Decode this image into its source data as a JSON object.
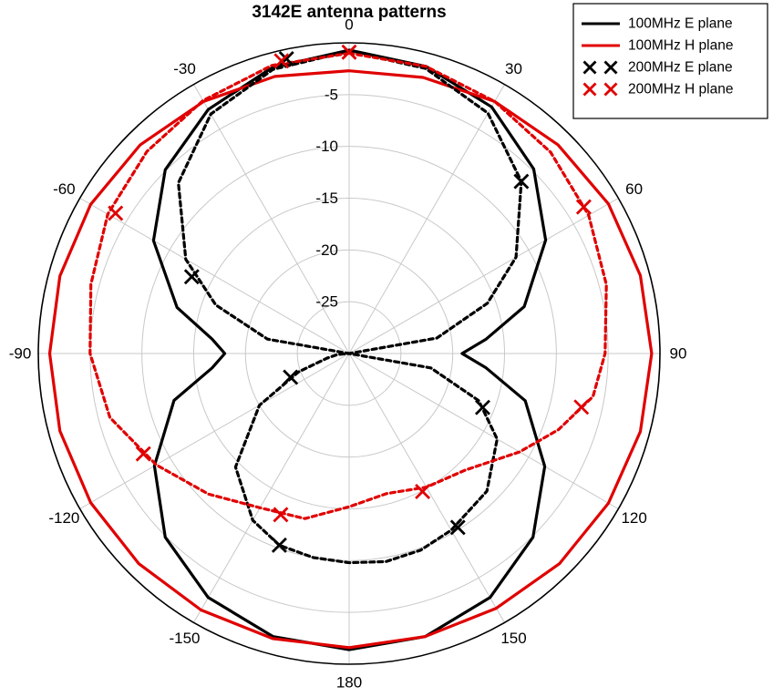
{
  "chart_data": {
    "type": "polar",
    "title": "3142E antenna patterns",
    "angle_ticks": [
      {
        "angle": 0,
        "label": "0"
      },
      {
        "angle": 30,
        "label": "30"
      },
      {
        "angle": 60,
        "label": "60"
      },
      {
        "angle": 90,
        "label": "90"
      },
      {
        "angle": 120,
        "label": "120"
      },
      {
        "angle": 150,
        "label": "150"
      },
      {
        "angle": 180,
        "label": "180"
      },
      {
        "angle": -150,
        "label": "-150"
      },
      {
        "angle": -120,
        "label": "-120"
      },
      {
        "angle": -90,
        "label": "-90"
      },
      {
        "angle": -60,
        "label": "-60"
      },
      {
        "angle": -30,
        "label": "-30"
      }
    ],
    "radial_ticks": [
      {
        "value": -5,
        "label": "-5"
      },
      {
        "value": -10,
        "label": "-10"
      },
      {
        "value": -15,
        "label": "-15"
      },
      {
        "value": -20,
        "label": "-20"
      },
      {
        "value": -25,
        "label": "-25"
      }
    ],
    "radial_range": [
      -30,
      0
    ],
    "grid": true,
    "legend_position": "top-right",
    "series": [
      {
        "name": "100MHz E plane",
        "color": "#000000",
        "style": "solid",
        "marker": "none",
        "points": [
          [
            0,
            -0.7
          ],
          [
            15,
            -1.3
          ],
          [
            30,
            -2.5
          ],
          [
            45,
            -4.8
          ],
          [
            60,
            -8.1
          ],
          [
            75,
            -12.5
          ],
          [
            84,
            -16.7
          ],
          [
            90,
            -19.1
          ],
          [
            96,
            -16.7
          ],
          [
            105,
            -12.4
          ],
          [
            120,
            -8.2
          ],
          [
            135,
            -4.9
          ],
          [
            150,
            -2.8
          ],
          [
            165,
            -1.7
          ],
          [
            180,
            -1.4
          ],
          [
            195,
            -1.7
          ],
          [
            210,
            -2.8
          ],
          [
            225,
            -4.9
          ],
          [
            240,
            -8.3
          ],
          [
            255,
            -12.5
          ],
          [
            264,
            -16.7
          ],
          [
            270,
            -18.0
          ],
          [
            276,
            -16.7
          ],
          [
            285,
            -12.8
          ],
          [
            300,
            -8.2
          ],
          [
            315,
            -4.9
          ],
          [
            330,
            -2.8
          ],
          [
            345,
            -1.4
          ]
        ]
      },
      {
        "name": "100MHz H plane",
        "color": "#e00000",
        "style": "solid",
        "marker": "none",
        "points": [
          [
            0,
            -2.7
          ],
          [
            15,
            -2.4
          ],
          [
            30,
            -1.9
          ],
          [
            45,
            -1.5
          ],
          [
            60,
            -1.1
          ],
          [
            75,
            -0.9
          ],
          [
            90,
            -0.8
          ],
          [
            105,
            -0.9
          ],
          [
            120,
            -1.1
          ],
          [
            135,
            -1.3
          ],
          [
            150,
            -1.6
          ],
          [
            165,
            -1.7
          ],
          [
            180,
            -1.6
          ],
          [
            195,
            -1.5
          ],
          [
            210,
            -1.4
          ],
          [
            225,
            -1.3
          ],
          [
            240,
            -1.2
          ],
          [
            255,
            -1.1
          ],
          [
            270,
            -1.1
          ],
          [
            285,
            -1.1
          ],
          [
            300,
            -1.2
          ],
          [
            315,
            -1.5
          ],
          [
            330,
            -1.9
          ],
          [
            345,
            -2.3
          ]
        ]
      },
      {
        "name": "200MHz E plane",
        "color": "#000000",
        "style": "dotted",
        "marker": "x",
        "points": [
          [
            0,
            -0.8
          ],
          [
            15,
            -1.5
          ],
          [
            30,
            -3.2
          ],
          [
            45,
            -6.5
          ],
          [
            60,
            -11.4
          ],
          [
            70,
            -15.8
          ],
          [
            80,
            -21.4
          ],
          [
            90,
            -30.0
          ],
          [
            100,
            -22.0
          ],
          [
            110,
            -16.7
          ],
          [
            120,
            -13.5
          ],
          [
            135,
            -11.2
          ],
          [
            150,
            -10.3
          ],
          [
            160,
            -9.8
          ],
          [
            170,
            -9.6
          ],
          [
            180,
            -9.8
          ],
          [
            190,
            -10.0
          ],
          [
            200,
            -10.3
          ],
          [
            210,
            -11.4
          ],
          [
            225,
            -14.5
          ],
          [
            240,
            -20.0
          ],
          [
            250,
            -24.8
          ],
          [
            258,
            -27.8
          ],
          [
            265,
            -28.9
          ],
          [
            270,
            -30.0
          ],
          [
            280,
            -22.0
          ],
          [
            290,
            -16.3
          ],
          [
            300,
            -11.8
          ],
          [
            315,
            -6.7
          ],
          [
            330,
            -3.3
          ],
          [
            345,
            -1.6
          ]
        ],
        "markers": [
          [
            -12,
            -0.9
          ],
          [
            45,
            -6.5
          ],
          [
            112,
            -16.1
          ],
          [
            148,
            -10.2
          ],
          [
            200,
            -10.3
          ],
          [
            248,
            -23.9
          ],
          [
            296,
            -13.1
          ]
        ]
      },
      {
        "name": "200MHz H plane",
        "color": "#e00000",
        "style": "dotted",
        "marker": "x",
        "points": [
          [
            0,
            -1.0
          ],
          [
            15,
            -1.3
          ],
          [
            30,
            -1.9
          ],
          [
            45,
            -2.5
          ],
          [
            60,
            -3.3
          ],
          [
            75,
            -4.3
          ],
          [
            90,
            -5.3
          ],
          [
            100,
            -6.1
          ],
          [
            110,
            -8.5
          ],
          [
            120,
            -11.0
          ],
          [
            135,
            -14.1
          ],
          [
            150,
            -15.1
          ],
          [
            165,
            -16.0
          ],
          [
            180,
            -15.2
          ],
          [
            195,
            -13.5
          ],
          [
            210,
            -12.8
          ],
          [
            225,
            -10.8
          ],
          [
            240,
            -8.5
          ],
          [
            255,
            -6.1
          ],
          [
            270,
            -5.0
          ],
          [
            285,
            -4.2
          ],
          [
            300,
            -3.1
          ],
          [
            315,
            -2.4
          ],
          [
            330,
            -1.8
          ],
          [
            345,
            -1.2
          ]
        ],
        "markers": [
          [
            0,
            -0.9
          ],
          [
            -13,
            -1.0
          ],
          [
            58,
            -3.3
          ],
          [
            103,
            -7.0
          ],
          [
            152,
            -14.9
          ],
          [
            203,
            -13.1
          ],
          [
            244,
            -7.9
          ],
          [
            -59,
            -3.7
          ]
        ]
      }
    ]
  }
}
